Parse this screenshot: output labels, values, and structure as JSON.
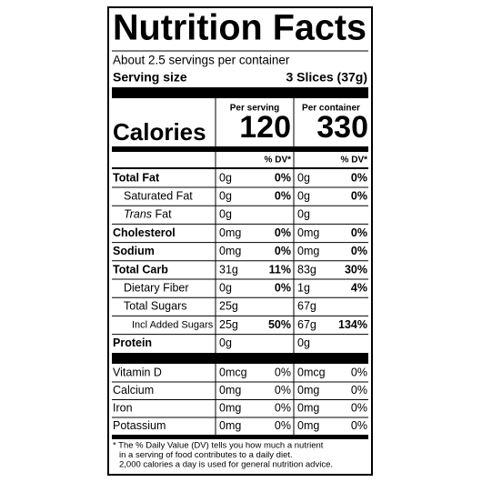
{
  "label": {
    "title": "Nutrition Facts",
    "servings": "About 2.5 servings per container",
    "serving_size_label": "Serving size",
    "serving_size": "3 Slices (37g)",
    "columns": [
      "Per serving",
      "Per container"
    ],
    "calories_label": "Calories",
    "calories": [
      120,
      330
    ],
    "dv_header": [
      "% DV*",
      "% DV*"
    ],
    "nutrients": [
      {
        "name": "Total Fat",
        "bold": true,
        "indent": 0,
        "serving": "0g",
        "serving_dv": "0%",
        "container": "0g",
        "container_dv": "0%"
      },
      {
        "name": "Saturated Fat",
        "bold": false,
        "indent": 1,
        "serving": "0g",
        "serving_dv": "0%",
        "container": "0g",
        "container_dv": "0%"
      },
      {
        "italic_prefix": "Trans",
        "name": "Fat",
        "bold": false,
        "indent": 1,
        "serving": "0g",
        "container": "0g"
      },
      {
        "name": "Cholesterol",
        "bold": true,
        "indent": 0,
        "serving": "0mg",
        "serving_dv": "0%",
        "container": "0mg",
        "container_dv": "0%"
      },
      {
        "name": "Sodium",
        "bold": true,
        "indent": 0,
        "serving": "0mg",
        "serving_dv": "0%",
        "container": "0mg",
        "container_dv": "0%"
      },
      {
        "name": "Total Carb",
        "bold": true,
        "indent": 0,
        "serving": "31g",
        "serving_dv": "11%",
        "container": "83g",
        "container_dv": "30%"
      },
      {
        "name": "Dietary Fiber",
        "bold": false,
        "indent": 1,
        "serving": "0g",
        "serving_dv": "0%",
        "container": "1g",
        "container_dv": "4%"
      },
      {
        "name": "Total Sugars",
        "bold": false,
        "indent": 1,
        "serving": "25g",
        "container": "67g"
      },
      {
        "name": "Incl Added Sugars",
        "bold": false,
        "indent": 2,
        "serving": "25g",
        "serving_dv": "50%",
        "container": "67g",
        "container_dv": "134%"
      },
      {
        "name": "Protein",
        "bold": true,
        "indent": 0,
        "serving": "0g",
        "container": "0g"
      }
    ],
    "vitamins": [
      {
        "name": "Vitamin D",
        "serving": "0mcg",
        "serving_dv": "0%",
        "container": "0mcg",
        "container_dv": "0%"
      },
      {
        "name": "Calcium",
        "serving": "0mg",
        "serving_dv": "0%",
        "container": "0mg",
        "container_dv": "0%"
      },
      {
        "name": "Iron",
        "serving": "0mg",
        "serving_dv": "0%",
        "container": "0mg",
        "container_dv": "0%"
      },
      {
        "name": "Potassium",
        "serving": "0mg",
        "serving_dv": "0%",
        "container": "0mg",
        "container_dv": "0%"
      }
    ],
    "footnote": [
      "* The % Daily Value (DV) tells you how much a nutrient",
      "in a serving of food contributes to a daily diet.",
      "2,000 calories a day is used for general nutrition advice."
    ]
  }
}
